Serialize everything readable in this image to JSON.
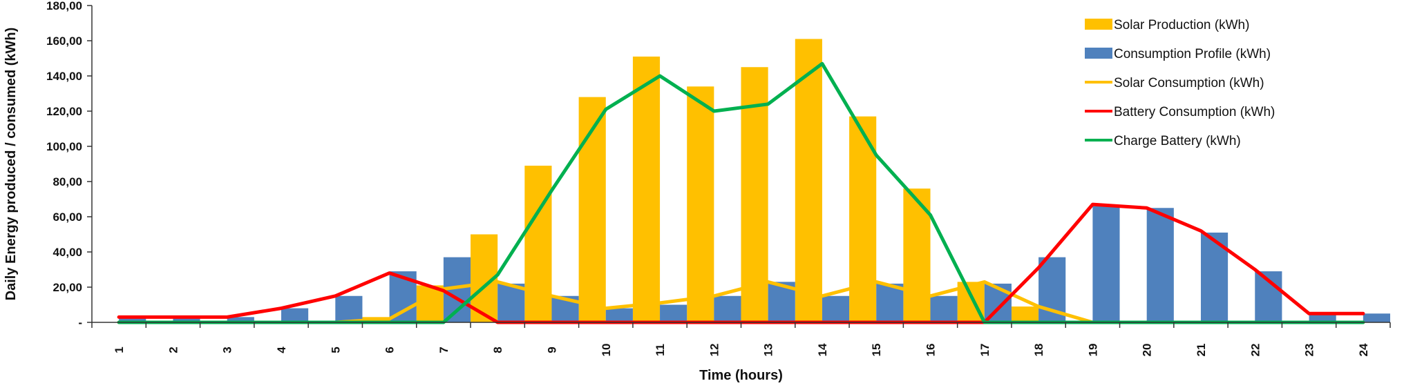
{
  "chart_data": {
    "type": "bar",
    "title": "",
    "xlabel": "Time (hours)",
    "ylabel": "Daily Energy produced / consumed (kWh)",
    "ylim": [
      0,
      180
    ],
    "ytick_values": [
      0,
      20,
      40,
      60,
      80,
      100,
      120,
      140,
      160,
      180
    ],
    "ytick_labels": [
      "-",
      "20,00",
      "40,00",
      "60,00",
      "80,00",
      "100,00",
      "120,00",
      "140,00",
      "160,00",
      "180,00"
    ],
    "categories": [
      "1",
      "2",
      "3",
      "4",
      "5",
      "6",
      "7",
      "8",
      "9",
      "10",
      "11",
      "12",
      "13",
      "14",
      "15",
      "16",
      "17",
      "18",
      "19",
      "20",
      "21",
      "22",
      "23",
      "24"
    ],
    "grid": false,
    "legend_position": "top-right",
    "series": [
      {
        "name": "Solar Production (kWh)",
        "kind": "bar",
        "color": "#FFC000",
        "values": [
          0,
          0,
          0,
          0,
          0,
          3,
          21,
          50,
          89,
          128,
          151,
          134,
          145,
          161,
          117,
          76,
          23,
          9,
          0,
          0,
          0,
          0,
          0,
          0
        ]
      },
      {
        "name": "Consumption Profile (kWh)",
        "kind": "bar",
        "color": "#4F81BD",
        "values": [
          3,
          3,
          3,
          8,
          15,
          29,
          37,
          22,
          15,
          8,
          10,
          15,
          23,
          15,
          22,
          15,
          22,
          37,
          66,
          65,
          51,
          29,
          5,
          5
        ]
      },
      {
        "name": "Solar Consumption (kWh)",
        "kind": "line",
        "color": "#FFC000",
        "values": [
          0,
          0,
          0,
          0,
          0,
          2,
          19,
          23,
          15,
          8,
          11,
          15,
          23,
          15,
          23,
          15,
          23,
          9,
          0,
          0,
          0,
          0,
          0,
          0
        ]
      },
      {
        "name": "Battery Consumption (kWh)",
        "kind": "line",
        "color": "#FF0000",
        "values": [
          3,
          3,
          3,
          8,
          15,
          28,
          18,
          0,
          0,
          0,
          0,
          0,
          0,
          0,
          0,
          0,
          0,
          31,
          67,
          65,
          52,
          30,
          5,
          5
        ]
      },
      {
        "name": "Charge Battery (kWh)",
        "kind": "line",
        "color": "#00B050",
        "values": [
          0,
          0,
          0,
          0,
          0,
          0,
          0,
          27,
          75,
          121,
          140,
          120,
          124,
          147,
          95,
          61,
          0,
          0,
          0,
          0,
          0,
          0,
          0,
          0
        ]
      }
    ]
  }
}
